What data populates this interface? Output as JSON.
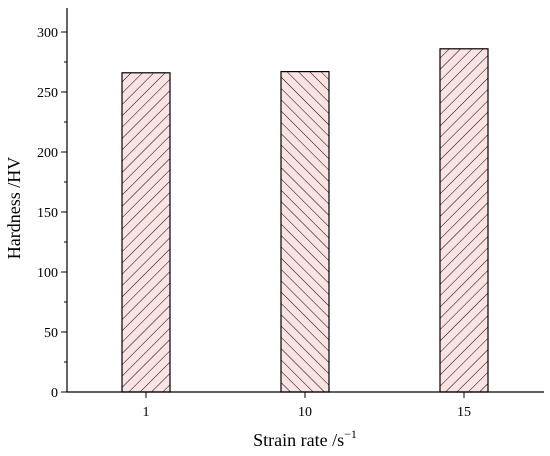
{
  "chart_data": {
    "type": "bar",
    "categories": [
      "1",
      "10",
      "15"
    ],
    "values": [
      266,
      267,
      286
    ],
    "xlabel": "Strain rate /s",
    "xlabel_superscript": "−1",
    "ylabel": "Hardness /HV",
    "ylim": [
      0,
      320
    ],
    "yticks": [
      0,
      50,
      100,
      150,
      200,
      250,
      300
    ],
    "grid": false,
    "bar_fill": "#fbe3e3",
    "bar_stroke": "#000000",
    "bar_hatch": [
      "diagonal-up",
      "diagonal-down",
      "diagonal-up"
    ]
  }
}
